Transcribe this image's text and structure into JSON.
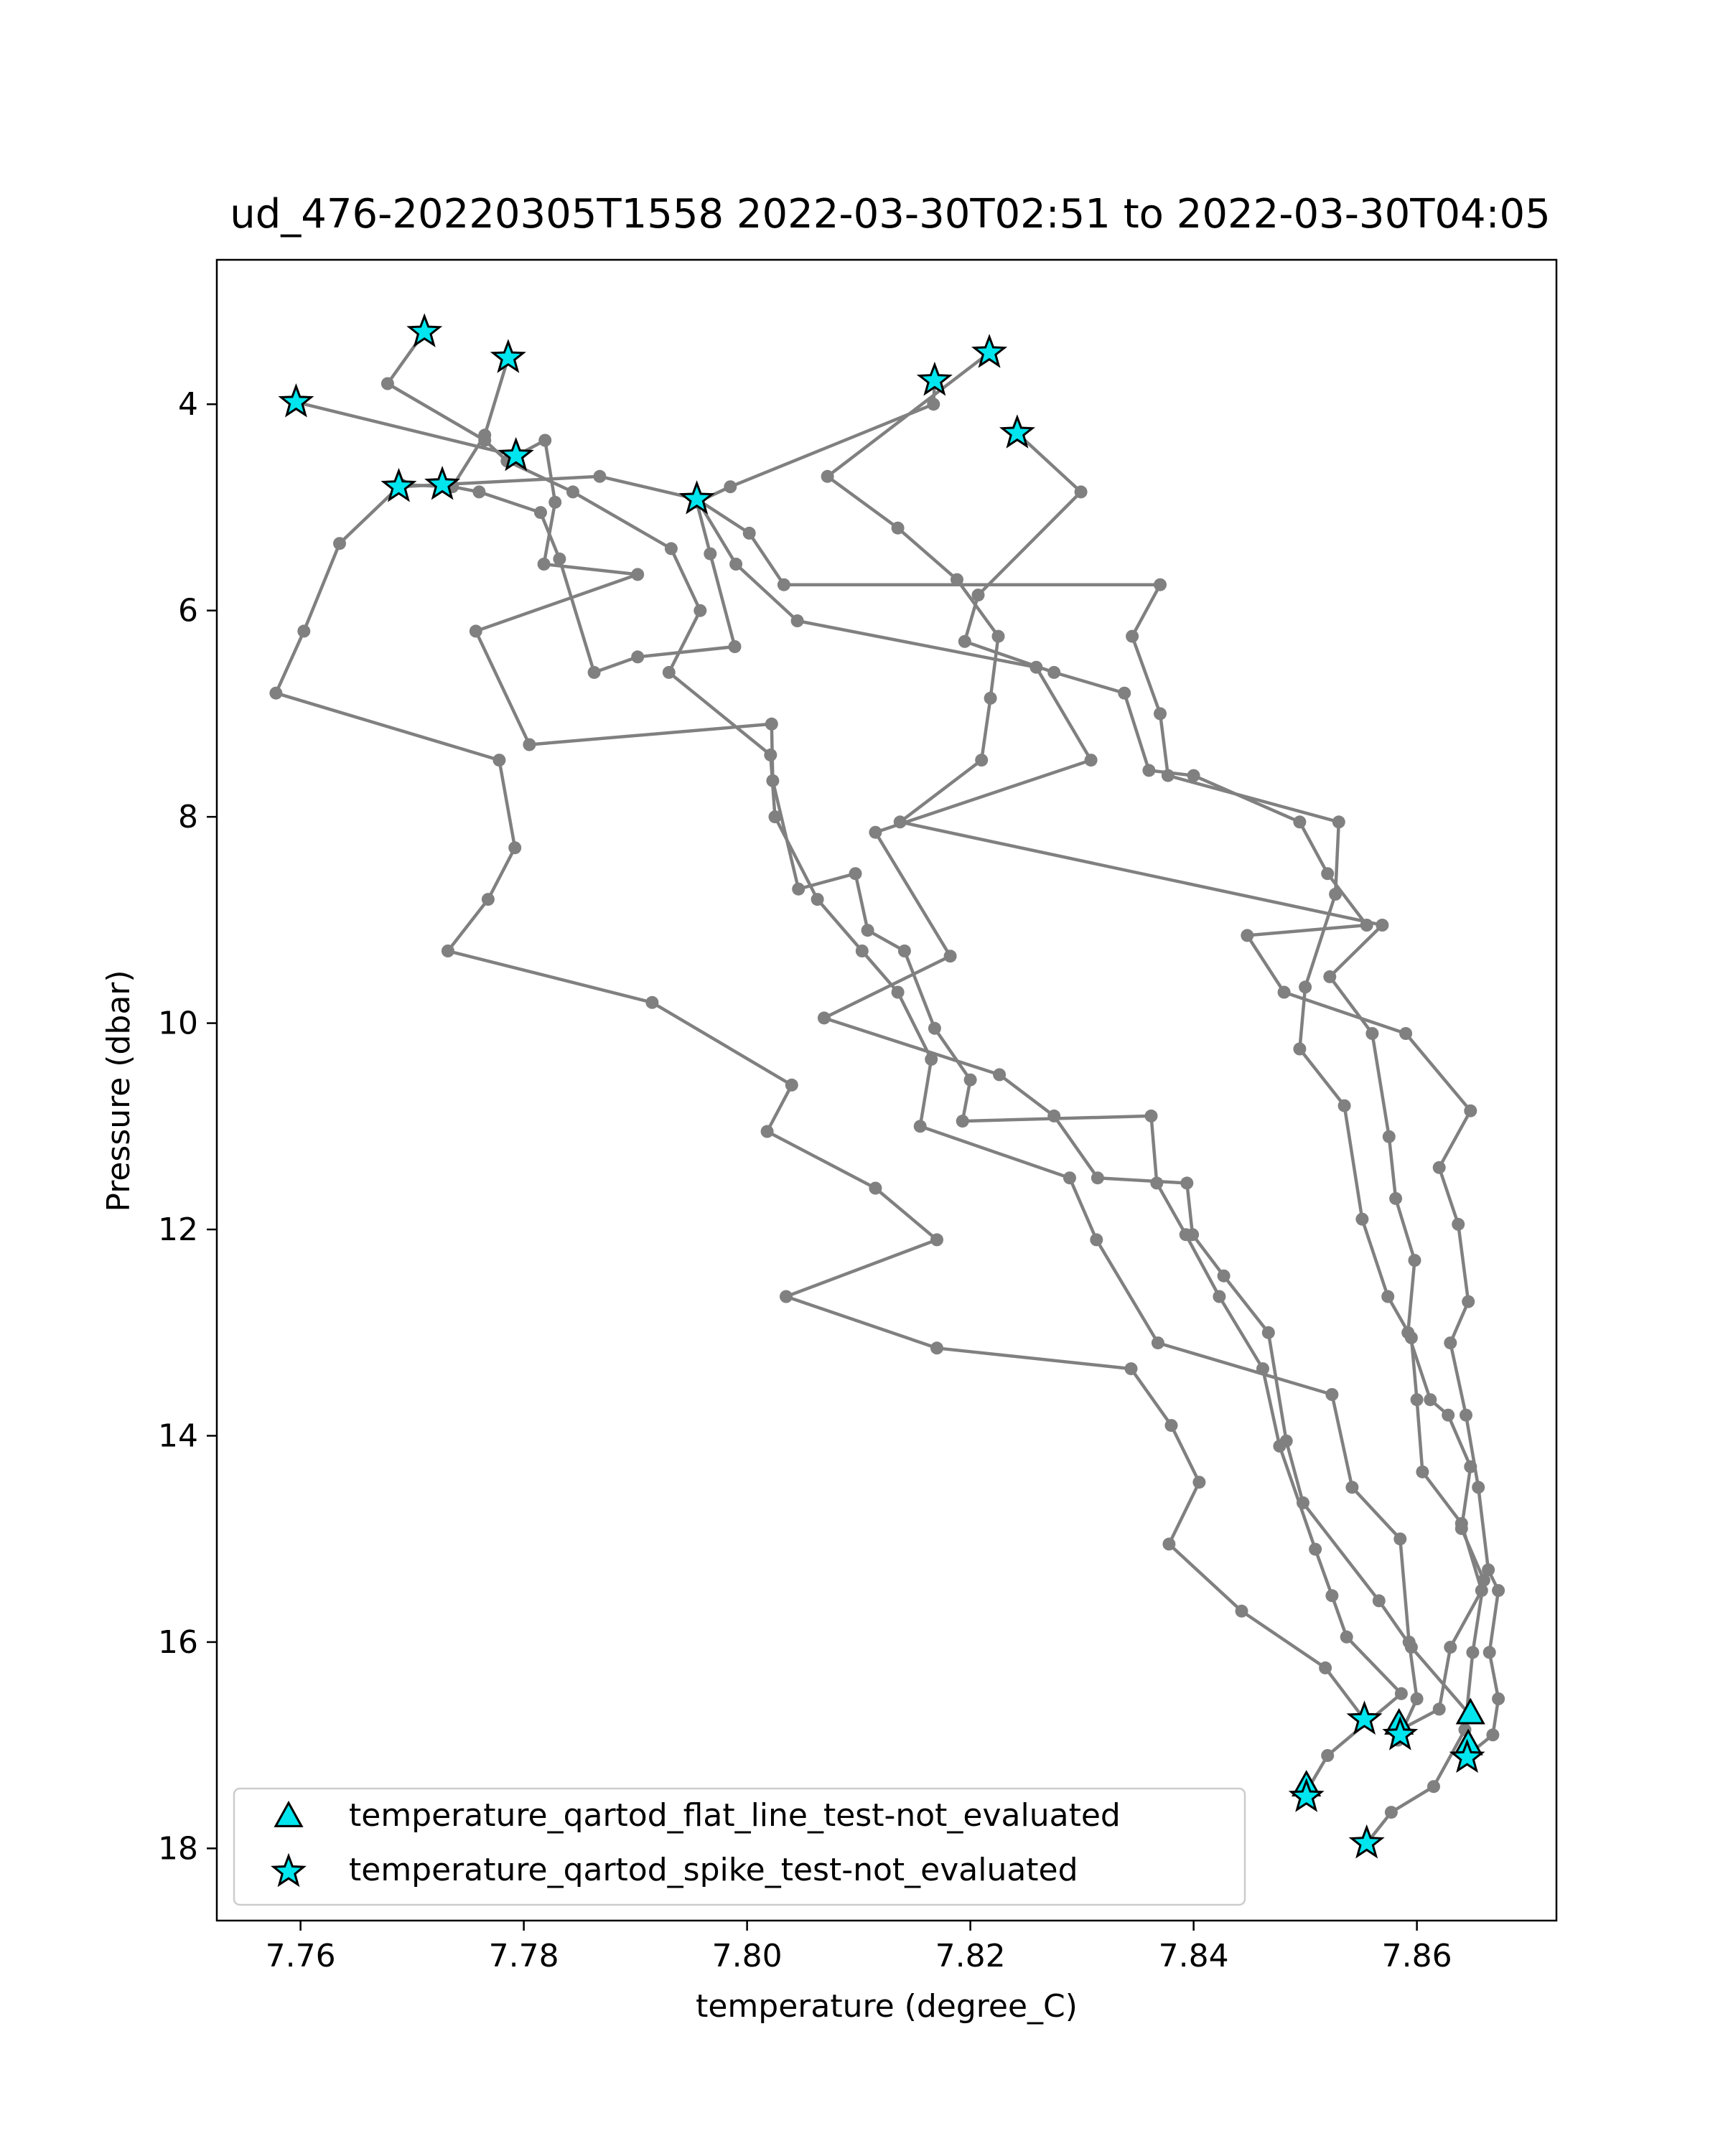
{
  "chart_data": {
    "type": "scatter",
    "title": "ud_476-20220305T1558 2022-03-30T02:51 to 2022-03-30T04:05",
    "xlabel": "temperature (degree_C)",
    "ylabel": "Pressure (dbar)",
    "xlim": [
      7.7525,
      7.8725
    ],
    "ylim": [
      18.7,
      2.6
    ],
    "y_inverted": true,
    "xticks": [
      7.76,
      7.78,
      7.8,
      7.82,
      7.84,
      7.86
    ],
    "xtick_labels": [
      "7.76",
      "7.78",
      "7.80",
      "7.82",
      "7.84",
      "7.86"
    ],
    "yticks": [
      4,
      6,
      8,
      10,
      12,
      14,
      16,
      18
    ],
    "ytick_labels": [
      "4",
      "6",
      "8",
      "10",
      "12",
      "14",
      "16",
      "18"
    ],
    "grid": false,
    "legend_position": "lower-left",
    "colors": {
      "profile_line": "#808080",
      "flag_fill": "#00e5ee",
      "flag_edge": "#000000"
    },
    "series": [
      {
        "name": "",
        "style": "line-marker",
        "color": "#808080",
        "points": [
          [
            7.7711,
            3.3
          ],
          [
            7.7678,
            3.8
          ],
          [
            7.7765,
            4.35
          ],
          [
            7.7785,
            4.55
          ],
          [
            7.7844,
            4.85
          ],
          [
            7.7932,
            5.4
          ],
          [
            7.7958,
            6.0
          ],
          [
            7.793,
            6.6
          ],
          [
            7.8021,
            7.4
          ],
          [
            7.8025,
            8.0
          ],
          [
            7.8063,
            8.8
          ],
          [
            7.8103,
            9.3
          ],
          [
            7.8135,
            9.7
          ],
          [
            7.8165,
            10.35
          ],
          [
            7.8155,
            11.0
          ],
          [
            7.8289,
            11.5
          ],
          [
            7.8313,
            12.1
          ],
          [
            7.8368,
            13.1
          ],
          [
            7.8524,
            13.6
          ],
          [
            7.8542,
            14.5
          ],
          [
            7.8585,
            15.0
          ],
          [
            7.8593,
            16.0
          ],
          [
            7.86,
            16.55
          ],
          [
            7.8583,
            16.95
          ]
        ]
      },
      {
        "name": "",
        "style": "line-marker",
        "color": "#808080",
        "points": [
          [
            7.7786,
            3.55
          ],
          [
            7.7765,
            4.3
          ],
          [
            7.7736,
            4.8
          ],
          [
            7.769,
            4.78
          ],
          [
            7.7635,
            5.35
          ],
          [
            7.7603,
            6.2
          ],
          [
            7.7578,
            6.8
          ],
          [
            7.7778,
            7.45
          ],
          [
            7.7792,
            8.3
          ],
          [
            7.7768,
            8.8
          ],
          [
            7.7732,
            9.3
          ],
          [
            7.7915,
            9.8
          ],
          [
            7.804,
            10.6
          ],
          [
            7.8018,
            11.05
          ],
          [
            7.8115,
            11.6
          ],
          [
            7.817,
            12.1
          ],
          [
            7.8035,
            12.65
          ],
          [
            7.817,
            13.15
          ],
          [
            7.8344,
            13.35
          ],
          [
            7.838,
            13.9
          ],
          [
            7.8405,
            14.45
          ],
          [
            7.8378,
            15.05
          ],
          [
            7.8443,
            15.7
          ],
          [
            7.8518,
            16.25
          ],
          [
            7.8553,
            16.75
          ]
        ]
      },
      {
        "name": "",
        "style": "line-marker",
        "color": "#808080",
        "points": [
          [
            7.7596,
            3.98
          ],
          [
            7.7793,
            4.5
          ],
          [
            7.7819,
            4.35
          ],
          [
            7.7828,
            4.95
          ],
          [
            7.7818,
            5.55
          ],
          [
            7.7902,
            5.65
          ],
          [
            7.7757,
            6.2
          ],
          [
            7.7805,
            7.3
          ],
          [
            7.8022,
            7.1
          ],
          [
            7.8023,
            7.65
          ],
          [
            7.8046,
            8.7
          ],
          [
            7.8097,
            8.55
          ],
          [
            7.8108,
            9.1
          ],
          [
            7.8141,
            9.3
          ],
          [
            7.8168,
            10.05
          ],
          [
            7.82,
            10.55
          ],
          [
            7.8193,
            10.95
          ],
          [
            7.8362,
            10.9
          ],
          [
            7.8367,
            11.55
          ],
          [
            7.8393,
            12.05
          ],
          [
            7.8423,
            12.65
          ],
          [
            7.8462,
            13.35
          ],
          [
            7.8477,
            14.1
          ],
          [
            7.8509,
            15.1
          ],
          [
            7.8524,
            15.55
          ],
          [
            7.8537,
            15.95
          ],
          [
            7.8586,
            16.5
          ],
          [
            7.852,
            17.1
          ],
          [
            7.8501,
            17.45
          ]
        ]
      },
      {
        "name": "",
        "style": "line-marker",
        "color": "#808080",
        "points": [
          [
            7.7727,
            4.78
          ],
          [
            7.776,
            4.85
          ],
          [
            7.7815,
            5.05
          ],
          [
            7.7832,
            5.5
          ],
          [
            7.7863,
            6.6
          ],
          [
            7.7902,
            6.45
          ],
          [
            7.7989,
            6.35
          ],
          [
            7.7967,
            5.45
          ],
          [
            7.7955,
            4.95
          ],
          [
            7.7985,
            4.8
          ],
          [
            7.8167,
            4.0
          ],
          [
            7.8168,
            3.77
          ]
        ]
      },
      {
        "name": "",
        "style": "line-marker",
        "color": "#808080",
        "points": [
          [
            7.7688,
            4.8
          ],
          [
            7.7868,
            4.7
          ],
          [
            7.7955,
            4.92
          ],
          [
            7.799,
            5.55
          ],
          [
            7.8045,
            6.1
          ],
          [
            7.8259,
            6.55
          ],
          [
            7.8308,
            7.45
          ],
          [
            7.8115,
            8.15
          ],
          [
            7.8182,
            9.35
          ],
          [
            7.8069,
            9.95
          ],
          [
            7.8226,
            10.5
          ],
          [
            7.8275,
            10.9
          ],
          [
            7.8314,
            11.5
          ],
          [
            7.8394,
            11.55
          ],
          [
            7.8399,
            12.05
          ],
          [
            7.8427,
            12.45
          ],
          [
            7.8467,
            13.0
          ],
          [
            7.8483,
            14.05
          ],
          [
            7.8498,
            14.65
          ],
          [
            7.8566,
            15.6
          ],
          [
            7.8595,
            16.05
          ],
          [
            7.8647,
            16.7
          ]
        ]
      },
      {
        "name": "",
        "style": "line-marker",
        "color": "#808080",
        "points": [
          [
            7.7955,
            4.92
          ],
          [
            7.8002,
            5.25
          ],
          [
            7.8033,
            5.75
          ],
          [
            7.837,
            5.75
          ],
          [
            7.8345,
            6.25
          ],
          [
            7.837,
            7.0
          ],
          [
            7.8377,
            7.6
          ],
          [
            7.853,
            8.05
          ],
          [
            7.8527,
            8.75
          ],
          [
            7.85,
            9.65
          ],
          [
            7.8495,
            10.25
          ],
          [
            7.8535,
            10.8
          ],
          [
            7.8551,
            11.9
          ],
          [
            7.8574,
            12.65
          ],
          [
            7.8595,
            13.05
          ],
          [
            7.86,
            13.65
          ],
          [
            7.8605,
            14.35
          ],
          [
            7.864,
            14.85
          ],
          [
            7.8658,
            15.5
          ],
          [
            7.863,
            16.05
          ],
          [
            7.862,
            16.65
          ],
          [
            7.8585,
            16.85
          ]
        ]
      },
      {
        "name": "",
        "style": "line-marker",
        "color": "#808080",
        "points": [
          [
            7.8217,
            3.5
          ],
          [
            7.8072,
            4.7
          ],
          [
            7.8135,
            5.2
          ],
          [
            7.8188,
            5.7
          ],
          [
            7.8225,
            6.25
          ],
          [
            7.8218,
            6.85
          ],
          [
            7.821,
            7.45
          ],
          [
            7.8137,
            8.05
          ],
          [
            7.8569,
            9.05
          ],
          [
            7.8522,
            9.55
          ],
          [
            7.856,
            10.1
          ],
          [
            7.8575,
            11.1
          ],
          [
            7.8581,
            11.7
          ],
          [
            7.8598,
            12.3
          ],
          [
            7.8592,
            13.0
          ],
          [
            7.8612,
            13.65
          ],
          [
            7.8628,
            13.8
          ],
          [
            7.8648,
            14.3
          ],
          [
            7.864,
            14.9
          ],
          [
            7.866,
            15.4
          ],
          [
            7.865,
            16.1
          ],
          [
            7.8643,
            16.85
          ],
          [
            7.8615,
            17.4
          ],
          [
            7.8577,
            17.65
          ],
          [
            7.8555,
            17.95
          ]
        ]
      },
      {
        "name": "",
        "style": "line-marker",
        "color": "#808080",
        "points": [
          [
            7.8242,
            4.28
          ],
          [
            7.8299,
            4.85
          ],
          [
            7.8207,
            5.85
          ],
          [
            7.8195,
            6.3
          ],
          [
            7.8275,
            6.6
          ],
          [
            7.8338,
            6.8
          ],
          [
            7.836,
            7.55
          ],
          [
            7.84,
            7.6
          ],
          [
            7.8495,
            8.05
          ],
          [
            7.852,
            8.55
          ],
          [
            7.8555,
            9.05
          ],
          [
            7.8448,
            9.15
          ],
          [
            7.8481,
            9.7
          ],
          [
            7.859,
            10.1
          ],
          [
            7.8648,
            10.85
          ],
          [
            7.862,
            11.4
          ],
          [
            7.8637,
            11.95
          ],
          [
            7.8646,
            12.7
          ],
          [
            7.863,
            13.1
          ],
          [
            7.8644,
            13.8
          ],
          [
            7.8655,
            14.5
          ],
          [
            7.8664,
            15.3
          ],
          [
            7.8673,
            15.5
          ],
          [
            7.8665,
            16.1
          ],
          [
            7.8673,
            16.55
          ],
          [
            7.8668,
            16.9
          ],
          [
            7.8645,
            17.1
          ]
        ]
      }
    ],
    "flags": [
      {
        "name": "temperature_qartod_flat_line_test-not_evaluated",
        "marker": "triangle",
        "points": [
          [
            7.8648,
            16.7
          ],
          [
            7.8584,
            16.8
          ],
          [
            7.8646,
            17.0
          ],
          [
            7.8501,
            17.4
          ]
        ]
      },
      {
        "name": "temperature_qartod_spike_test-not_evaluated",
        "marker": "star",
        "points": [
          [
            7.7711,
            3.3
          ],
          [
            7.7786,
            3.55
          ],
          [
            7.8217,
            3.5
          ],
          [
            7.8168,
            3.77
          ],
          [
            7.7596,
            3.98
          ],
          [
            7.8242,
            4.28
          ],
          [
            7.7793,
            4.5
          ],
          [
            7.7688,
            4.8
          ],
          [
            7.7727,
            4.78
          ],
          [
            7.7955,
            4.92
          ],
          [
            7.8553,
            16.75
          ],
          [
            7.8585,
            16.9
          ],
          [
            7.8645,
            17.12
          ],
          [
            7.8501,
            17.5
          ],
          [
            7.8555,
            17.95
          ]
        ]
      }
    ]
  }
}
